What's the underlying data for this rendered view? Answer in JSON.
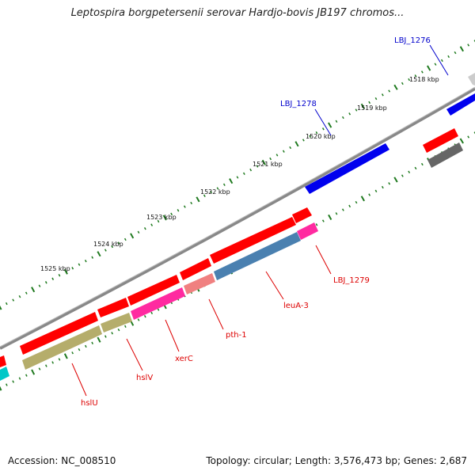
{
  "title": "Leptospira borgpetersenii serovar Hardjo-bovis JB197 chromos...",
  "footer": {
    "accession": "Accession: NC_008510",
    "summary": "Topology: circular; Length: 3,576,473 bp; Genes: 2,687"
  },
  "colors": {
    "gene_red": "#ff0000",
    "gene_blue": "#0000ee",
    "gene_gray": "#666666",
    "gene_lightgray": "#cccccc",
    "gene_cyan": "#00c8c8",
    "cds_olive": "#b5ad6b",
    "cds_magenta": "#ff2aa0",
    "cds_pink": "#f08080",
    "cds_steelblue": "#4a80b0",
    "backbone": "#888888",
    "tick_green": "#1f7a1f",
    "label_red": "#dd0000",
    "label_blue": "#0000cc"
  },
  "ticks": [
    {
      "label": "1518 kbp"
    },
    {
      "label": "1519 kbp"
    },
    {
      "label": "1520 kbp"
    },
    {
      "label": "1521 kbp"
    },
    {
      "label": "1522 kbp"
    },
    {
      "label": "1523 kbp"
    },
    {
      "label": "1524 kbp"
    },
    {
      "label": "1525 kbp"
    }
  ],
  "genes": [
    {
      "name": "LBJ_1276",
      "color": "label_blue"
    },
    {
      "name": "LBJ_1278",
      "color": "label_blue"
    },
    {
      "name": "LBJ_1279",
      "color": "label_red"
    },
    {
      "name": "leuA-3",
      "color": "label_red"
    },
    {
      "name": "pth-1",
      "color": "label_red"
    },
    {
      "name": "xerC",
      "color": "label_red"
    },
    {
      "name": "hslV",
      "color": "label_red"
    },
    {
      "name": "hslU",
      "color": "label_red"
    }
  ]
}
